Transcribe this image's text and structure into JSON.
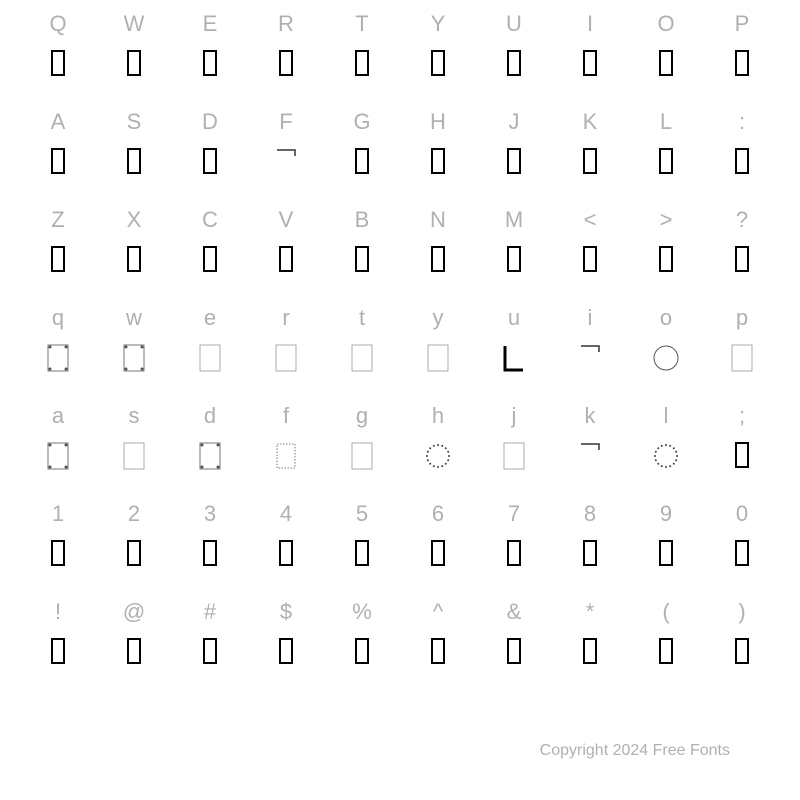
{
  "copyright": "Copyright 2024 Free Fonts",
  "rows": [
    {
      "chars": [
        "Q",
        "W",
        "E",
        "R",
        "T",
        "Y",
        "U",
        "I",
        "O",
        "P"
      ],
      "glyphType": [
        "missing",
        "missing",
        "missing",
        "missing",
        "missing",
        "missing",
        "missing",
        "missing",
        "missing",
        "missing"
      ]
    },
    {
      "chars": [
        "A",
        "S",
        "D",
        "F",
        "G",
        "H",
        "J",
        "K",
        "L",
        ":"
      ],
      "glyphType": [
        "missing",
        "missing",
        "missing",
        "frame-corner",
        "missing",
        "missing",
        "missing",
        "missing",
        "missing",
        "missing"
      ]
    },
    {
      "chars": [
        "Z",
        "X",
        "C",
        "V",
        "B",
        "N",
        "M",
        "<",
        ">",
        "?"
      ],
      "glyphType": [
        "missing",
        "missing",
        "missing",
        "missing",
        "missing",
        "missing",
        "missing",
        "missing",
        "missing",
        "missing"
      ]
    },
    {
      "chars": [
        "q",
        "w",
        "e",
        "r",
        "t",
        "y",
        "u",
        "i",
        "o",
        "p"
      ],
      "glyphType": [
        "frame-ornate",
        "frame-ornate",
        "frame-light",
        "frame-light",
        "frame-light",
        "frame-light",
        "frame-u",
        "frame-corner",
        "circle",
        "frame-light"
      ]
    },
    {
      "chars": [
        "a",
        "s",
        "d",
        "f",
        "g",
        "h",
        "j",
        "k",
        "l",
        ";"
      ],
      "glyphType": [
        "frame-ornate",
        "frame-light",
        "frame-ornate",
        "frame-dots",
        "frame-light",
        "circle-dots",
        "frame-light",
        "frame-corner",
        "circle-dots",
        "missing"
      ]
    },
    {
      "chars": [
        "1",
        "2",
        "3",
        "4",
        "5",
        "6",
        "7",
        "8",
        "9",
        "0"
      ],
      "glyphType": [
        "missing",
        "missing",
        "missing",
        "missing",
        "missing",
        "missing",
        "missing",
        "missing",
        "missing",
        "missing"
      ]
    },
    {
      "chars": [
        "!",
        "@",
        "#",
        "$",
        "%",
        "^",
        "&",
        "*",
        "(",
        ")"
      ],
      "glyphType": [
        "missing",
        "missing",
        "missing",
        "missing",
        "missing",
        "missing",
        "missing",
        "missing",
        "missing",
        "missing"
      ]
    }
  ],
  "colors": {
    "label": "#b0b0b0",
    "glyphBorder": "#000000",
    "background": "#ffffff"
  }
}
